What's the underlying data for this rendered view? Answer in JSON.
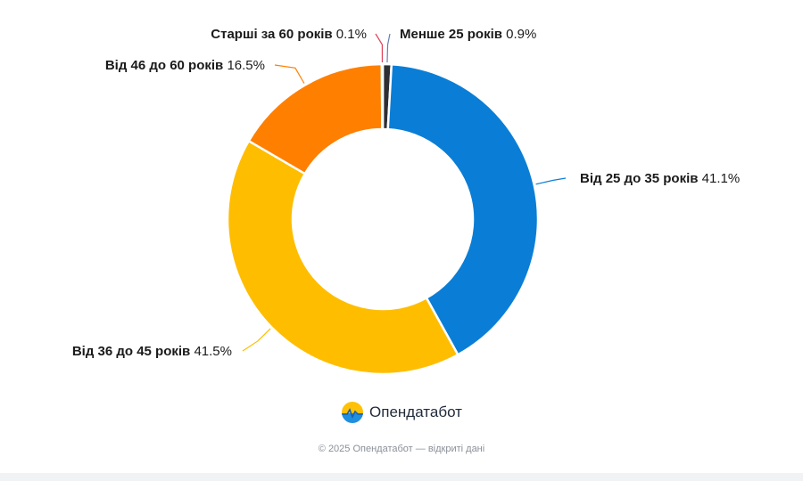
{
  "chart_data": {
    "type": "pie",
    "donut": true,
    "slices": [
      {
        "label": "Менше 25 років",
        "value": 0.9,
        "value_text": "0.9%",
        "color": "#2d2f33"
      },
      {
        "label": "Від 25 до 35 років",
        "value": 41.1,
        "value_text": "41.1%",
        "color": "#0a7ed6"
      },
      {
        "label": "Від 36 до 45 років",
        "value": 41.5,
        "value_text": "41.5%",
        "color": "#ffbd00"
      },
      {
        "label": "Від 46 до 60 років",
        "value": 16.5,
        "value_text": "16.5%",
        "color": "#ff7f00"
      },
      {
        "label": "Старші за 60 років",
        "value": 0.1,
        "value_text": "0.1%",
        "color": "#e0405a"
      }
    ],
    "legend": "none",
    "labels": "outside"
  },
  "brand": {
    "name": "Опендатабот",
    "logo_icon": "sun-sea-logo-icon"
  },
  "footer": {
    "text": "© 2025 Опендатабот — відкриті дані"
  }
}
